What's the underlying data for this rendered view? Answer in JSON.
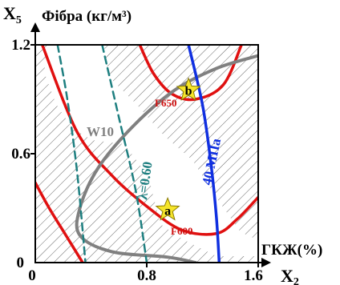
{
  "axes": {
    "y_axis_label": "X",
    "y_axis_subscript": "5",
    "y_quantity": "Фібра (кг/м³)",
    "x_quantity": "ГКЖ(%)",
    "x_axis_label": "X",
    "x_axis_subscript": "2",
    "x_ticks": [
      "0",
      "0.8",
      "1.6"
    ],
    "y_ticks": [
      "0",
      "0.6",
      "1.2"
    ]
  },
  "curve_labels": {
    "w10": "W10",
    "lambda": "λ=0.60",
    "strength": "40 МПа",
    "f650": "F650",
    "f600": "F600"
  },
  "points": [
    {
      "label": "a",
      "x": 0.95,
      "y": 0.29
    },
    {
      "label": "b",
      "x": 1.1,
      "y": 0.95
    }
  ],
  "colors": {
    "frost_curves": "#e01010",
    "w10_curve": "#808080",
    "lambda_curve": "#1e7f80",
    "strength_curve": "#1030e0",
    "point_fill": "#f6e52a"
  },
  "chart_data": {
    "type": "contour",
    "xlim": [
      0,
      1.6
    ],
    "ylim": [
      0,
      1.2
    ],
    "x_ticks": [
      0,
      0.8,
      1.6
    ],
    "y_ticks": [
      0,
      0.6,
      1.2
    ],
    "hatched_region": true,
    "series": [
      {
        "name": "F600",
        "x": [
          0.05,
          0.3,
          0.55,
          0.8,
          1.05,
          1.3,
          1.45,
          1.6
        ],
        "y": [
          1.2,
          0.72,
          0.48,
          0.31,
          0.18,
          0.16,
          0.24,
          0.36
        ]
      },
      {
        "name": "F600",
        "x": [
          0,
          0.1,
          0.22,
          0.34
        ],
        "y": [
          0.44,
          0.3,
          0.15,
          0
        ]
      },
      {
        "name": "F650",
        "x": [
          0.75,
          0.85,
          0.98,
          1.15,
          1.35,
          1.48
        ],
        "y": [
          1.2,
          1.04,
          0.93,
          0.9,
          0.98,
          1.2
        ]
      },
      {
        "name": "W10",
        "x": [
          1.6,
          1.3,
          1.0,
          0.7,
          0.45,
          0.32,
          0.32,
          0.55,
          0.95,
          1.15
        ],
        "y": [
          1.14,
          1.07,
          0.95,
          0.75,
          0.52,
          0.3,
          0.15,
          0.06,
          0.03,
          0
        ]
      },
      {
        "name": "λ=0.60",
        "x": [
          0.16,
          0.23,
          0.3,
          0.36
        ],
        "y": [
          1.2,
          0.9,
          0.5,
          0
        ]
      },
      {
        "name": "λ=0.60",
        "x": [
          0.48,
          0.6,
          0.72,
          0.8
        ],
        "y": [
          1.2,
          0.8,
          0.4,
          0
        ]
      },
      {
        "name": "40 МПа",
        "x": [
          1.1,
          1.2,
          1.26,
          1.3,
          1.32
        ],
        "y": [
          1.2,
          0.87,
          0.55,
          0.25,
          0
        ]
      }
    ]
  }
}
